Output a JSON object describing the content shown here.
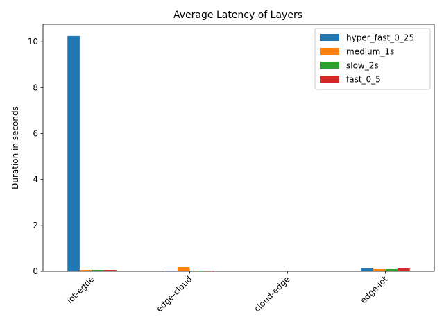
{
  "chart_data": {
    "type": "bar",
    "title": "Average Latency of Layers",
    "xlabel": "",
    "ylabel": "Duration in seconds",
    "categories": [
      "iot-egde",
      "edge-cloud",
      "cloud-edge",
      "edge-iot"
    ],
    "series": [
      {
        "name": "hyper_fast_0_25",
        "color": "#1f77b4",
        "values": [
          10.25,
          0.03,
          0.0,
          0.12
        ]
      },
      {
        "name": "medium_1s",
        "color": "#ff7f0e",
        "values": [
          0.06,
          0.18,
          0.0,
          0.09
        ]
      },
      {
        "name": "slow_2s",
        "color": "#2ca02c",
        "values": [
          0.06,
          0.03,
          0.0,
          0.09
        ]
      },
      {
        "name": "fast_0_5",
        "color": "#d62728",
        "values": [
          0.06,
          0.03,
          0.0,
          0.12
        ]
      }
    ],
    "ylim": [
      0,
      10.76
    ],
    "yticks": [
      0,
      2,
      4,
      6,
      8,
      10
    ],
    "grid": false,
    "legend_position": "top-right"
  }
}
